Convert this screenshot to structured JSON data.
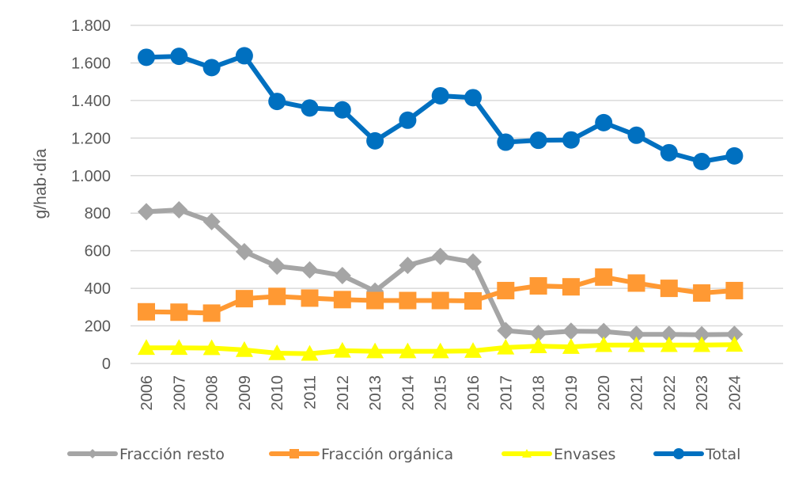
{
  "chart_data": {
    "type": "line",
    "title": "",
    "xlabel": "",
    "ylabel": "g/hab·día",
    "ylim": [
      0,
      1800
    ],
    "yticks": [
      0,
      200,
      400,
      600,
      800,
      1000,
      1200,
      1400,
      1600,
      1800
    ],
    "ytick_labels": [
      "0",
      "200",
      "400",
      "600",
      "800",
      "1.000",
      "1.200",
      "1.400",
      "1.600",
      "1.800"
    ],
    "grid": true,
    "legend_position": "bottom",
    "categories": [
      "2006",
      "2007",
      "2008",
      "2009",
      "2010",
      "2011",
      "2012",
      "2013",
      "2014",
      "2015",
      "2016",
      "2017",
      "2018",
      "2019",
      "2020",
      "2021",
      "2022",
      "2023",
      "2024"
    ],
    "series": [
      {
        "name": "Fracción resto",
        "color": "#a5a5a5",
        "marker": "diamond",
        "values": [
          808,
          818,
          755,
          595,
          518,
          498,
          468,
          385,
          522,
          570,
          540,
          175,
          160,
          172,
          170,
          155,
          155,
          153,
          155
        ]
      },
      {
        "name": "Fracción orgánica",
        "color": "#ff9933",
        "marker": "square",
        "values": [
          275,
          273,
          268,
          345,
          357,
          348,
          340,
          335,
          335,
          335,
          333,
          388,
          413,
          408,
          460,
          428,
          400,
          375,
          388
        ]
      },
      {
        "name": "Envases",
        "color": "#ffff00",
        "marker": "triangle",
        "values": [
          83,
          83,
          82,
          72,
          55,
          52,
          68,
          65,
          65,
          65,
          67,
          85,
          92,
          88,
          98,
          98,
          98,
          98,
          100
        ]
      },
      {
        "name": "Total",
        "color": "#0070c0",
        "marker": "circle",
        "values": [
          1630,
          1635,
          1575,
          1638,
          1395,
          1360,
          1350,
          1185,
          1295,
          1425,
          1415,
          1178,
          1188,
          1190,
          1282,
          1215,
          1122,
          1075,
          1105
        ]
      }
    ]
  }
}
